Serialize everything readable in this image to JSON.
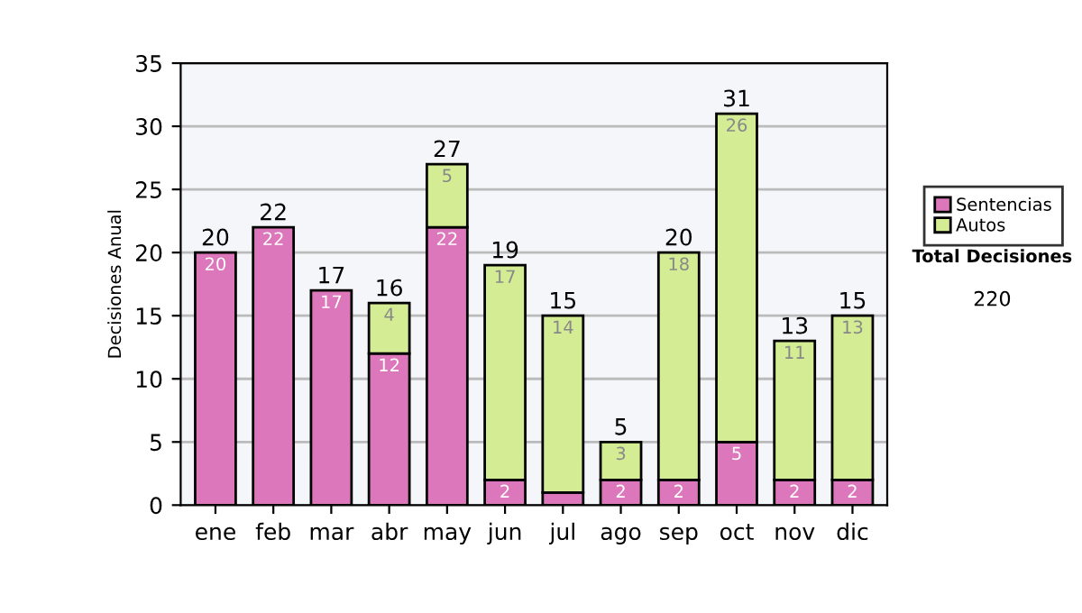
{
  "chart_data": {
    "type": "bar",
    "stacked": true,
    "ylabel": "Decisiones Anual",
    "categories": [
      "ene",
      "feb",
      "mar",
      "abr",
      "may",
      "jun",
      "jul",
      "ago",
      "sep",
      "oct",
      "nov",
      "dic"
    ],
    "series": [
      {
        "name": "Sentencias",
        "color": "#dd77bb",
        "values": [
          20,
          22,
          17,
          12,
          22,
          2,
          1,
          2,
          2,
          5,
          2,
          2
        ],
        "value_labels": [
          "20",
          "22",
          "17",
          "12",
          "22",
          "2",
          null,
          "2",
          "2",
          "5",
          "2",
          "2"
        ]
      },
      {
        "name": "Autos",
        "color": "#d4ec94",
        "values": [
          null,
          null,
          null,
          4,
          5,
          17,
          14,
          3,
          18,
          26,
          11,
          13
        ],
        "value_labels": [
          null,
          null,
          null,
          "4",
          "5",
          "17",
          "14",
          "3",
          "18",
          "26",
          "11",
          "13"
        ]
      }
    ],
    "totals": [
      "20",
      "22",
      "17",
      "16",
      "27",
      "19",
      "15",
      "5",
      "20",
      "31",
      "13",
      "15"
    ],
    "ylim": [
      0,
      35
    ],
    "yticks": [
      0,
      5,
      10,
      15,
      20,
      25,
      30,
      35
    ],
    "grid": "y",
    "legend": "right",
    "annotations": [
      "Total Decisiones",
      "220"
    ]
  }
}
